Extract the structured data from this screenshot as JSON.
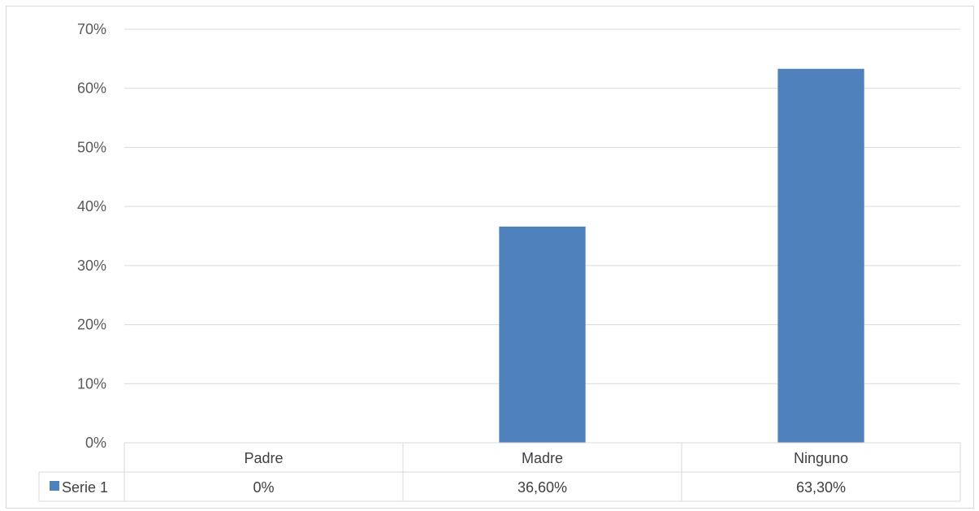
{
  "chart_data": {
    "type": "bar",
    "categories": [
      "Padre",
      "Madre",
      "Ninguno"
    ],
    "series": [
      {
        "name": "Serie 1",
        "values": [
          0,
          36.6,
          63.3
        ],
        "value_labels": [
          "0%",
          "36,60%",
          "63,30%"
        ],
        "color": "#4f81bd"
      }
    ],
    "y_ticks": [
      "0%",
      "10%",
      "20%",
      "30%",
      "40%",
      "50%",
      "60%",
      "70%"
    ],
    "ylim": [
      0,
      70
    ],
    "y_unit": "%",
    "grid": true,
    "legend": "data-table"
  }
}
